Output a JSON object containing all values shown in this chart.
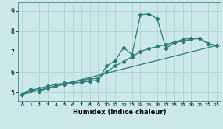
{
  "xlabel": "Humidex (Indice chaleur)",
  "bg_color": "#cce8e8",
  "line_color": "#2d7d78",
  "grid_color": "#aacfcf",
  "xlim": [
    -0.5,
    23.5
  ],
  "ylim": [
    4.6,
    9.4
  ],
  "yticks": [
    5,
    6,
    7,
    8,
    9
  ],
  "xticks": [
    0,
    1,
    2,
    3,
    4,
    5,
    6,
    7,
    8,
    9,
    10,
    11,
    12,
    13,
    14,
    15,
    16,
    17,
    18,
    19,
    20,
    21,
    22,
    23
  ],
  "series": [
    {
      "x": [
        0,
        1,
        2,
        3,
        4,
        5,
        6,
        7,
        8,
        9,
        10,
        11,
        12,
        13,
        14,
        15,
        16,
        17,
        18,
        19,
        20,
        21,
        22,
        23
      ],
      "y": [
        4.9,
        5.15,
        5.05,
        5.2,
        5.3,
        5.4,
        5.45,
        5.5,
        5.55,
        5.6,
        6.3,
        6.55,
        7.2,
        6.85,
        8.8,
        8.85,
        8.6,
        7.15,
        7.45,
        7.6,
        7.65,
        7.65,
        7.4,
        7.3
      ]
    },
    {
      "x": [
        0,
        1,
        2,
        3,
        4,
        5,
        6,
        7,
        8,
        9,
        10,
        11,
        12,
        13,
        14,
        15,
        16,
        17,
        18,
        19,
        20,
        21,
        22,
        23
      ],
      "y": [
        4.9,
        5.1,
        5.2,
        5.3,
        5.4,
        5.45,
        5.5,
        5.6,
        5.65,
        5.7,
        6.0,
        6.3,
        6.5,
        6.75,
        7.0,
        7.15,
        7.25,
        7.35,
        7.45,
        7.5,
        7.6,
        7.65,
        7.38,
        7.3
      ]
    },
    {
      "x": [
        0,
        23
      ],
      "y": [
        4.9,
        7.3
      ]
    }
  ]
}
